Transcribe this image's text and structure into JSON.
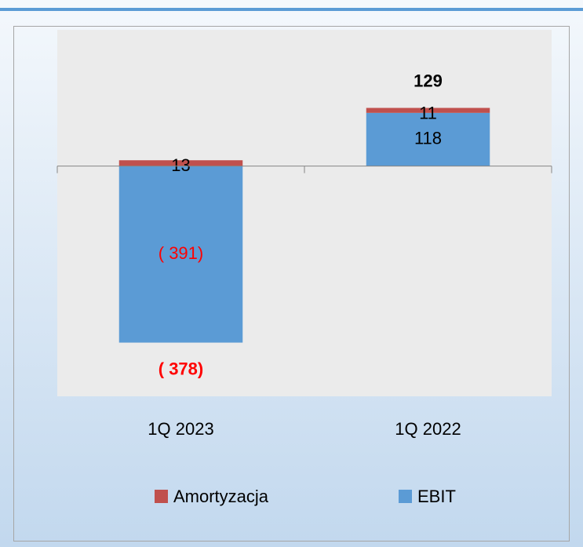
{
  "chart_data": {
    "type": "stacked_bar",
    "categories": [
      "1Q 2023",
      "1Q 2022"
    ],
    "series": [
      {
        "name": "Amortyzacja",
        "color": "#c0504d",
        "values": [
          13,
          11
        ]
      },
      {
        "name": "EBIT",
        "color": "#5b9bd5",
        "values": [
          -391,
          118
        ],
        "value_labels": [
          "( 391)",
          "118"
        ]
      }
    ],
    "totals": [
      -378,
      129
    ],
    "total_labels": [
      "( 378)",
      "129"
    ],
    "negative_label_color": "#ff0000",
    "ylim": [
      -510,
      302
    ],
    "legend": "bottom"
  }
}
